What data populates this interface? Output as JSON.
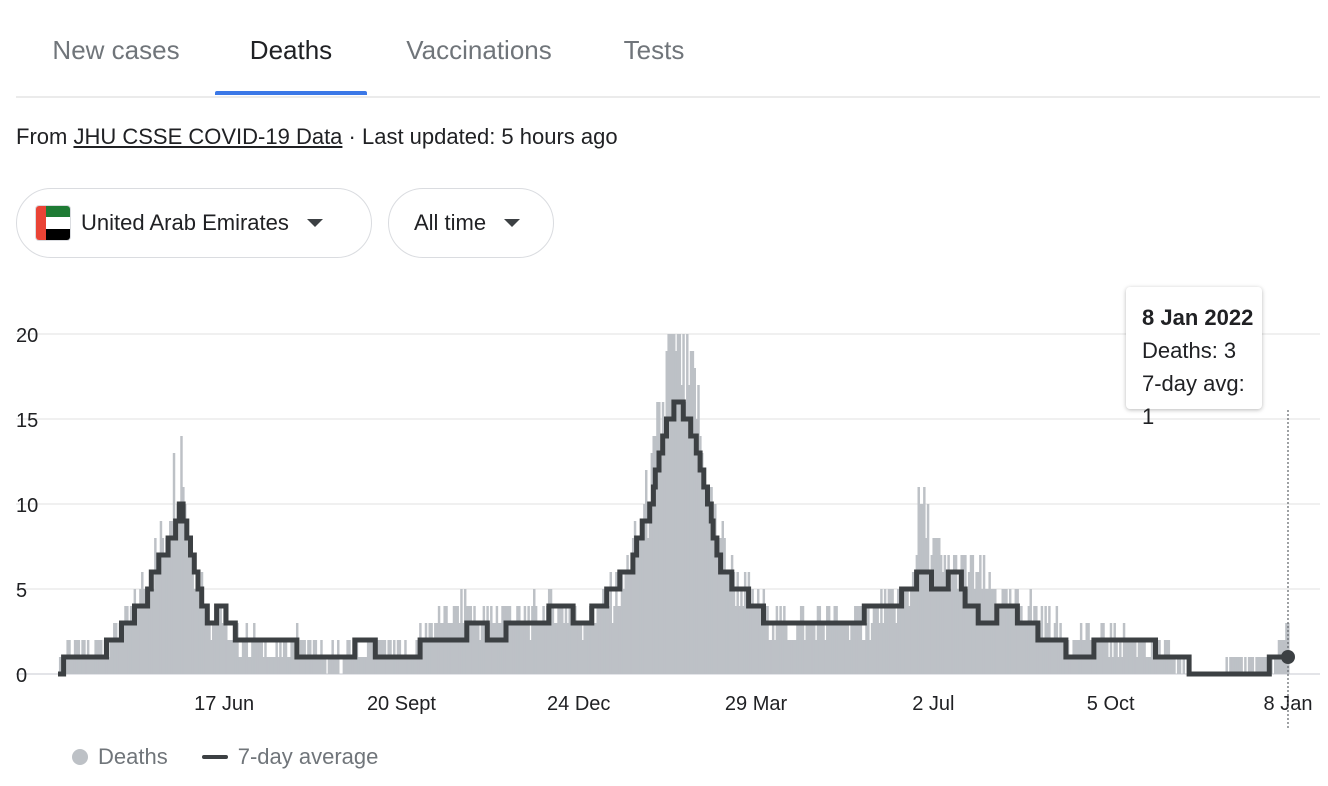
{
  "tabs": [
    {
      "label": "New cases",
      "active": false
    },
    {
      "label": "Deaths",
      "active": true
    },
    {
      "label": "Vaccinations",
      "active": false
    },
    {
      "label": "Tests",
      "active": false
    }
  ],
  "source": {
    "prefix": "From",
    "link_text": "JHU CSSE COVID-19 Data",
    "suffix": "· Last updated: 5 hours ago"
  },
  "filters": {
    "region": "United Arab Emirates",
    "period": "All time"
  },
  "colors": {
    "accent": "#3b78e7",
    "bars": "#bdc1c6",
    "avg_line": "#3c4043",
    "flag_red": "#ea4335",
    "flag_green": "#1e7b34",
    "flag_white": "#ffffff",
    "flag_black": "#000000"
  },
  "tooltip": {
    "date": "8 Jan 2022",
    "deaths": "Deaths: 3",
    "avg": "7-day avg: 1"
  },
  "legend": {
    "deaths": "Deaths",
    "avg": "7-day average"
  },
  "chart_data": {
    "type": "bar",
    "x_axis": "daily dates",
    "ylim": [
      0,
      20
    ],
    "y_ticks": [
      "0",
      "5",
      "10",
      "15",
      "20"
    ],
    "x_ticks": [
      "17 Jun",
      "20 Sept",
      "24 Dec",
      "29 Mar",
      "2 Jul",
      "5 Oct",
      "8 Jan"
    ],
    "grid": true,
    "legend_position": "bottom-left",
    "highlight": {
      "date": "8 Jan 2022",
      "deaths": 3,
      "avg": 1
    },
    "series": [
      {
        "name": "Deaths",
        "style": "bars",
        "points": [
          [
            "2020-03-20",
            0
          ],
          [
            "2020-03-25",
            2
          ],
          [
            "2020-04-05",
            1
          ],
          [
            "2020-04-15",
            2
          ],
          [
            "2020-04-25",
            3
          ],
          [
            "2020-05-01",
            4
          ],
          [
            "2020-05-08",
            6
          ],
          [
            "2020-05-15",
            8
          ],
          [
            "2020-05-20",
            11
          ],
          [
            "2020-05-25",
            13
          ],
          [
            "2020-06-01",
            6
          ],
          [
            "2020-06-05",
            5
          ],
          [
            "2020-06-10",
            3
          ],
          [
            "2020-06-15",
            4
          ],
          [
            "2020-06-20",
            2
          ],
          [
            "2020-07-01",
            2
          ],
          [
            "2020-07-15",
            1
          ],
          [
            "2020-07-25",
            2
          ],
          [
            "2020-08-10",
            1
          ],
          [
            "2020-08-25",
            1
          ],
          [
            "2020-09-10",
            2
          ],
          [
            "2020-09-25",
            1
          ],
          [
            "2020-10-05",
            3
          ],
          [
            "2020-10-15",
            3
          ],
          [
            "2020-10-25",
            4
          ],
          [
            "2020-11-05",
            3
          ],
          [
            "2020-11-15",
            4
          ],
          [
            "2020-11-25",
            3
          ],
          [
            "2020-12-05",
            4
          ],
          [
            "2020-12-15",
            4
          ],
          [
            "2020-12-25",
            3
          ],
          [
            "2021-01-05",
            4
          ],
          [
            "2021-01-15",
            5
          ],
          [
            "2021-01-25",
            8
          ],
          [
            "2021-02-01",
            11
          ],
          [
            "2021-02-05",
            14
          ],
          [
            "2021-02-10",
            18
          ],
          [
            "2021-02-15",
            20
          ],
          [
            "2021-02-20",
            17
          ],
          [
            "2021-02-25",
            16
          ],
          [
            "2021-03-01",
            12
          ],
          [
            "2021-03-05",
            10
          ],
          [
            "2021-03-12",
            7
          ],
          [
            "2021-03-20",
            5
          ],
          [
            "2021-03-29",
            4
          ],
          [
            "2021-04-10",
            3
          ],
          [
            "2021-04-25",
            3
          ],
          [
            "2021-05-10",
            3
          ],
          [
            "2021-05-25",
            3
          ],
          [
            "2021-06-10",
            4
          ],
          [
            "2021-06-20",
            5
          ],
          [
            "2021-06-25",
            10
          ],
          [
            "2021-07-02",
            7
          ],
          [
            "2021-07-10",
            6
          ],
          [
            "2021-07-20",
            6
          ],
          [
            "2021-08-01",
            5
          ],
          [
            "2021-08-10",
            4
          ],
          [
            "2021-08-20",
            4
          ],
          [
            "2021-09-01",
            3
          ],
          [
            "2021-09-15",
            2
          ],
          [
            "2021-10-05",
            2
          ],
          [
            "2021-10-20",
            2
          ],
          [
            "2021-11-05",
            1
          ],
          [
            "2021-11-20",
            0
          ],
          [
            "2021-12-05",
            0
          ],
          [
            "2021-12-20",
            1
          ],
          [
            "2022-01-01",
            1
          ],
          [
            "2022-01-08",
            3
          ]
        ]
      },
      {
        "name": "7-day average",
        "style": "step-line",
        "points": [
          [
            "2020-03-20",
            0
          ],
          [
            "2020-03-25",
            1
          ],
          [
            "2020-04-01",
            1
          ],
          [
            "2020-04-10",
            1
          ],
          [
            "2020-04-20",
            2
          ],
          [
            "2020-04-25",
            3
          ],
          [
            "2020-05-05",
            4
          ],
          [
            "2020-05-10",
            6
          ],
          [
            "2020-05-15",
            7
          ],
          [
            "2020-05-20",
            8
          ],
          [
            "2020-05-25",
            10
          ],
          [
            "2020-05-30",
            7
          ],
          [
            "2020-06-05",
            4
          ],
          [
            "2020-06-10",
            3
          ],
          [
            "2020-06-15",
            4
          ],
          [
            "2020-06-20",
            3
          ],
          [
            "2020-06-25",
            2
          ],
          [
            "2020-07-20",
            2
          ],
          [
            "2020-07-30",
            1
          ],
          [
            "2020-08-20",
            1
          ],
          [
            "2020-09-01",
            2
          ],
          [
            "2020-09-10",
            1
          ],
          [
            "2020-09-25",
            1
          ],
          [
            "2020-10-05",
            2
          ],
          [
            "2020-10-20",
            2
          ],
          [
            "2020-10-30",
            3
          ],
          [
            "2020-11-10",
            2
          ],
          [
            "2020-11-20",
            3
          ],
          [
            "2020-12-01",
            3
          ],
          [
            "2020-12-15",
            4
          ],
          [
            "2020-12-25",
            3
          ],
          [
            "2021-01-05",
            4
          ],
          [
            "2021-01-10",
            5
          ],
          [
            "2021-01-20",
            6
          ],
          [
            "2021-01-25",
            8
          ],
          [
            "2021-02-01",
            10
          ],
          [
            "2021-02-05",
            13
          ],
          [
            "2021-02-10",
            15
          ],
          [
            "2021-02-15",
            16
          ],
          [
            "2021-02-20",
            15
          ],
          [
            "2021-02-28",
            12
          ],
          [
            "2021-03-05",
            9
          ],
          [
            "2021-03-10",
            6
          ],
          [
            "2021-03-20",
            5
          ],
          [
            "2021-03-29",
            4
          ],
          [
            "2021-04-05",
            3
          ],
          [
            "2021-05-01",
            3
          ],
          [
            "2021-05-20",
            3
          ],
          [
            "2021-06-01",
            4
          ],
          [
            "2021-06-10",
            4
          ],
          [
            "2021-06-20",
            5
          ],
          [
            "2021-06-25",
            6
          ],
          [
            "2021-07-05",
            5
          ],
          [
            "2021-07-15",
            6
          ],
          [
            "2021-07-20",
            4
          ],
          [
            "2021-07-30",
            3
          ],
          [
            "2021-08-10",
            4
          ],
          [
            "2021-08-20",
            3
          ],
          [
            "2021-09-01",
            2
          ],
          [
            "2021-09-20",
            1
          ],
          [
            "2021-10-01",
            2
          ],
          [
            "2021-10-25",
            2
          ],
          [
            "2021-11-01",
            1
          ],
          [
            "2021-11-10",
            1
          ],
          [
            "2021-11-20",
            0
          ],
          [
            "2021-12-10",
            0
          ],
          [
            "2021-12-25",
            0
          ],
          [
            "2022-01-01",
            1
          ],
          [
            "2022-01-08",
            1
          ]
        ]
      }
    ]
  }
}
